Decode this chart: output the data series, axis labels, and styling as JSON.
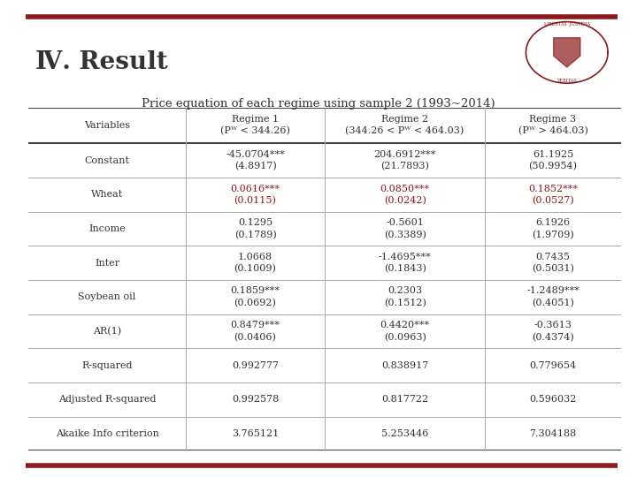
{
  "title": "Price equation of each regime using sample 2 (1993~2014)",
  "header_line1": [
    "Variables",
    "Regime 1",
    "Regime 2",
    "Regime 3"
  ],
  "header_line2": [
    "",
    "(Pᵂ < 344.26)",
    "(344.26 < Pᵂ < 464.03)",
    "(Pᵂ > 464.03)"
  ],
  "rows": [
    {
      "label": "Constant",
      "vals": [
        "-45.0704***\n(4.8917)",
        "204.6912***\n(21.7893)",
        "61.1925\n(50.9954)"
      ],
      "red": [
        false,
        false,
        false
      ]
    },
    {
      "label": "Wheat",
      "vals": [
        "0.0616***\n(0.0115)",
        "0.0850***\n(0.0242)",
        "0.1852***\n(0.0527)"
      ],
      "red": [
        true,
        true,
        true
      ]
    },
    {
      "label": "Income",
      "vals": [
        "0.1295\n(0.1789)",
        "-0.5601\n(0.3389)",
        "6.1926\n(1.9709)"
      ],
      "red": [
        false,
        false,
        false
      ]
    },
    {
      "label": "Inter",
      "vals": [
        "1.0668\n(0.1009)",
        "-1.4695***\n(0.1843)",
        "0.7435\n(0.5031)"
      ],
      "red": [
        false,
        false,
        false
      ]
    },
    {
      "label": "Soybean oil",
      "vals": [
        "0.1859***\n(0.0692)",
        "0.2303\n(0.1512)",
        "-1.2489***\n(0.4051)"
      ],
      "red": [
        false,
        false,
        false
      ]
    },
    {
      "label": "AR(1)",
      "vals": [
        "0.8479***\n(0.0406)",
        "0.4420***\n(0.0963)",
        "-0.3613\n(0.4374)"
      ],
      "red": [
        false,
        false,
        false
      ]
    },
    {
      "label": "R-squared",
      "vals": [
        "0.992777",
        "0.838917",
        "0.779654"
      ],
      "red": [
        false,
        false,
        false
      ]
    },
    {
      "label": "Adjusted R-squared",
      "vals": [
        "0.992578",
        "0.817722",
        "0.596032"
      ],
      "red": [
        false,
        false,
        false
      ]
    },
    {
      "label": "Akaike Info criterion",
      "vals": [
        "3.765121",
        "5.253446",
        "7.304188"
      ],
      "red": [
        false,
        false,
        false
      ]
    }
  ],
  "bg_color": "#ffffff",
  "thick_line_color": "#444444",
  "thin_line_color": "#aaaaaa",
  "red_color": "#8b1a1a",
  "dark_color": "#333333",
  "bar_color": "#8b1a1a",
  "title_font_size": 9.5,
  "header_font_size": 8,
  "cell_font_size": 8,
  "label_font_size": 8,
  "main_title": "Ⅳ. Result",
  "main_title_size": 20,
  "fig_width": 7.2,
  "fig_height": 5.4,
  "fig_dpi": 100
}
